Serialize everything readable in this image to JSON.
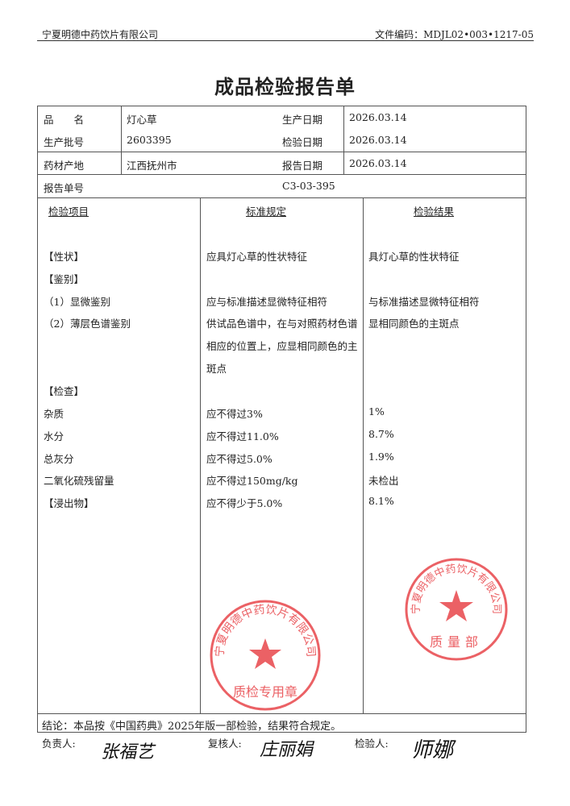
{
  "header": {
    "company": "宁夏明德中药饮片有限公司",
    "doc_no": "文件编码：MDJL02•003•1217-05"
  },
  "title": "成品检验报告单",
  "info": {
    "name_label": "品　　名",
    "name": "灯心草",
    "batch_label": "生产批号",
    "batch": "2603395",
    "origin_label": "药材产地",
    "origin": "江西抚州市",
    "prod_date_label": "生产日期",
    "prod_date": "2026.03.14",
    "test_date_label": "检验日期",
    "test_date": "2026.03.14",
    "report_date_label": "报告日期",
    "report_date": "2026.03.14",
    "report_no_label": "报告单号",
    "report_no": "C3-03-395"
  },
  "columns": [
    "检验项目",
    "标准规定",
    "检验结果"
  ],
  "rows": [
    {
      "item": "【性状】",
      "standard": "应具灯心草的性状特征",
      "result": "具灯心草的性状特征"
    },
    {
      "item": "【鉴别】",
      "standard": "",
      "result": ""
    },
    {
      "item": "（1）显微鉴别",
      "standard": "应与标准描述显微特征相符",
      "result": "与标准描述显微特征相符"
    },
    {
      "item": "（2）薄层色谱鉴别",
      "standard": "供试品色谱中，在与对照药材色谱",
      "result": "显相同颜色的主斑点"
    },
    {
      "item": "",
      "standard": "相应的位置上，应显相同颜色的主",
      "result": ""
    },
    {
      "item": "",
      "standard": "斑点",
      "result": ""
    },
    {
      "item": "【检查】",
      "standard": "",
      "result": ""
    },
    {
      "item": "杂质",
      "standard": "应不得过3%",
      "result": "1%"
    },
    {
      "item": "水分",
      "standard": "应不得过11.0%",
      "result": "8.7%"
    },
    {
      "item": "总灰分",
      "standard": "应不得过5.0%",
      "result": "1.9%"
    },
    {
      "item": "二氧化硫残留量",
      "standard": "应不得过150mg/kg",
      "result": "未检出"
    },
    {
      "item": "【浸出物】",
      "standard": "应不得少于5.0%",
      "result": "8.1%"
    }
  ],
  "conclusion": "结论：本品按《中国药典》2025年版一部检验，结果符合规定。",
  "signatures": {
    "responsible_label": "负责人:",
    "responsible": "张福艺",
    "reviewer_label": "复核人:",
    "reviewer": "庄丽娟",
    "inspector_label": "检验人:",
    "inspector": "师娜"
  },
  "stamps": {
    "top": {
      "text": "宁夏明德中药饮片有限公司",
      "bottom": "质量部"
    },
    "bottom": {
      "text": "宁夏明德中药饮片有限公司",
      "bottom": "质检专用章"
    },
    "color": "#e8454a"
  }
}
